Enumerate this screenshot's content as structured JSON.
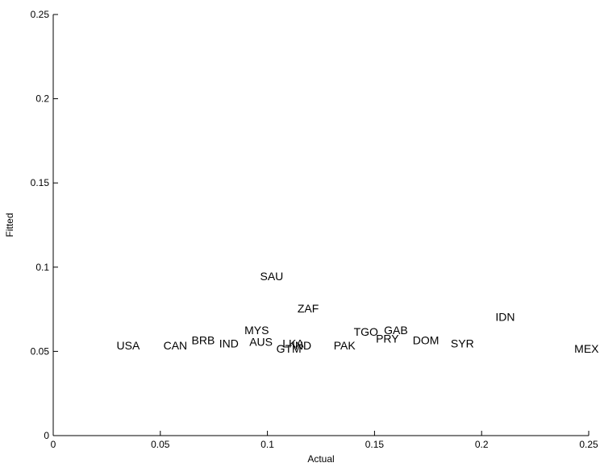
{
  "chart_data": {
    "type": "scatter",
    "title": "",
    "xlabel": "Actual",
    "ylabel": "Fitted",
    "xlim": [
      0,
      0.25
    ],
    "ylim": [
      0,
      0.25
    ],
    "xticks": [
      0,
      0.05,
      0.1,
      0.15,
      0.2,
      0.25
    ],
    "yticks": [
      0,
      0.05,
      0.1,
      0.15,
      0.2,
      0.25
    ],
    "xtick_labels": [
      "0",
      "0.05",
      "0.1",
      "0.15",
      "0.2",
      "0.25"
    ],
    "ytick_labels": [
      "0",
      "0.05",
      "0.1",
      "0.15",
      "0.2",
      "0.25"
    ],
    "grid": false,
    "marker": "text-label",
    "points": [
      {
        "label": "USA",
        "x": 0.035,
        "y": 0.053
      },
      {
        "label": "CAN",
        "x": 0.057,
        "y": 0.053
      },
      {
        "label": "BRB",
        "x": 0.07,
        "y": 0.056
      },
      {
        "label": "IND",
        "x": 0.082,
        "y": 0.054
      },
      {
        "label": "MYS",
        "x": 0.095,
        "y": 0.062
      },
      {
        "label": "SAU",
        "x": 0.102,
        "y": 0.094
      },
      {
        "label": "AUS",
        "x": 0.097,
        "y": 0.055
      },
      {
        "label": "GTM",
        "x": 0.11,
        "y": 0.051
      },
      {
        "label": "LKA",
        "x": 0.112,
        "y": 0.054
      },
      {
        "label": "IND",
        "x": 0.116,
        "y": 0.053
      },
      {
        "label": "ZAF",
        "x": 0.119,
        "y": 0.075
      },
      {
        "label": "PAK",
        "x": 0.136,
        "y": 0.053
      },
      {
        "label": "TGO",
        "x": 0.146,
        "y": 0.061
      },
      {
        "label": "GAB",
        "x": 0.16,
        "y": 0.062
      },
      {
        "label": "PRY",
        "x": 0.156,
        "y": 0.057
      },
      {
        "label": "DOM",
        "x": 0.174,
        "y": 0.056
      },
      {
        "label": "SYR",
        "x": 0.191,
        "y": 0.054
      },
      {
        "label": "IDN",
        "x": 0.211,
        "y": 0.07
      },
      {
        "label": "MEX",
        "x": 0.249,
        "y": 0.051
      }
    ]
  }
}
